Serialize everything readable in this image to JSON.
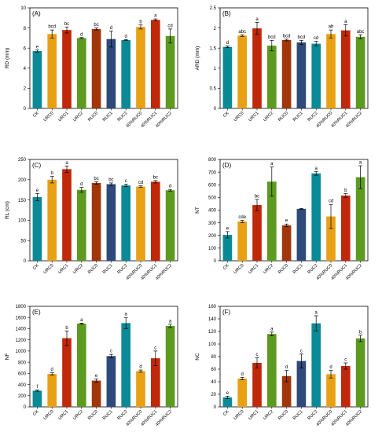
{
  "chart_data": [
    {
      "panel_label": "(A)",
      "type": "bar",
      "ylabel": "RD (mm)",
      "ylim": [
        0,
        10
      ],
      "yticks": [
        0,
        2,
        4,
        6,
        8,
        10
      ],
      "categories": [
        "CK",
        "URC0",
        "URC1",
        "URC2",
        "RUC0",
        "RUC1",
        "RUC2",
        "40%RUC0",
        "40%RUC1",
        "40%RUC2"
      ],
      "values": [
        5.7,
        7.4,
        7.8,
        7.0,
        7.9,
        6.9,
        6.8,
        8.1,
        8.8,
        7.2
      ],
      "errors": [
        0.1,
        0.4,
        0.3,
        0.05,
        0.1,
        0.8,
        0.05,
        0.2,
        0.1,
        0.7
      ],
      "letters": [
        "e",
        "bcd",
        "bc",
        "d",
        "bc",
        "d",
        "d",
        "b",
        "a",
        "cd"
      ],
      "colors": [
        "#0a8a96",
        "#e8a014",
        "#c0280a",
        "#5c9a20",
        "#a0360a",
        "#2e4a7a",
        "#0a8a96",
        "#e8a014",
        "#c0280a",
        "#5c9a20"
      ]
    },
    {
      "panel_label": "(B)",
      "type": "bar",
      "ylabel": "ARD (mm)",
      "ylim": [
        0,
        2.5
      ],
      "yticks": [
        0,
        0.5,
        1.0,
        1.5,
        2.0,
        2.5
      ],
      "categories": [
        "CK",
        "URC0",
        "URC1",
        "URC2",
        "RUC0",
        "RUC1",
        "RUC2",
        "40%RUC0",
        "40%RUC1",
        "40%RUC2"
      ],
      "values": [
        1.53,
        1.81,
        1.99,
        1.56,
        1.7,
        1.64,
        1.61,
        1.85,
        1.94,
        1.78
      ],
      "errors": [
        0.02,
        0.02,
        0.15,
        0.13,
        0.02,
        0.05,
        0.06,
        0.1,
        0.14,
        0.05
      ],
      "letters": [
        "d",
        "abc",
        "a",
        "bcd",
        "bcd",
        "bcd",
        "cd",
        "ab",
        "a",
        "abc"
      ],
      "colors": [
        "#0a8a96",
        "#e8a014",
        "#c0280a",
        "#5c9a20",
        "#a0360a",
        "#2e4a7a",
        "#0a8a96",
        "#e8a014",
        "#c0280a",
        "#5c9a20"
      ]
    },
    {
      "panel_label": "(C)",
      "type": "bar",
      "ylabel": "RL (cm)",
      "ylim": [
        0,
        250
      ],
      "yticks": [
        0,
        50,
        100,
        150,
        200,
        250
      ],
      "categories": [
        "CK",
        "URC0",
        "URC1",
        "URC2",
        "RUC0",
        "RUC1",
        "RUC2",
        "40%RUC0",
        "40%RUC1",
        "40%RUC2"
      ],
      "values": [
        157,
        200,
        226,
        175,
        192,
        189,
        186,
        183,
        195,
        174
      ],
      "errors": [
        9,
        8,
        8,
        6,
        3,
        3,
        3,
        2,
        3,
        2
      ],
      "letters": [
        "e",
        "b",
        "a",
        "d",
        "bc",
        "bc",
        "c",
        "cd",
        "bc",
        "d"
      ],
      "colors": [
        "#0a8a96",
        "#e8a014",
        "#c0280a",
        "#5c9a20",
        "#a0360a",
        "#2e4a7a",
        "#0a8a96",
        "#e8a014",
        "#c0280a",
        "#5c9a20"
      ]
    },
    {
      "panel_label": "(D)",
      "type": "bar",
      "ylabel": "NT",
      "ylim": [
        0,
        800
      ],
      "yticks": [
        0,
        100,
        200,
        300,
        400,
        500,
        600,
        700,
        800
      ],
      "categories": [
        "CK",
        "URC0",
        "URC1",
        "URC2",
        "RUC0",
        "RUC1",
        "RUC2",
        "40%RUC0",
        "40%RUC1",
        "40%RUC2"
      ],
      "values": [
        205,
        310,
        440,
        625,
        280,
        410,
        690,
        350,
        515,
        660
      ],
      "errors": [
        25,
        10,
        45,
        115,
        10,
        3,
        15,
        95,
        15,
        90
      ],
      "letters": [
        "e",
        "cde",
        "bc",
        "a",
        "e",
        "",
        "a",
        "cd",
        "b",
        "a"
      ],
      "colors": [
        "#0a8a96",
        "#e8a014",
        "#c0280a",
        "#5c9a20",
        "#a0360a",
        "#2e4a7a",
        "#0a8a96",
        "#e8a014",
        "#c0280a",
        "#5c9a20"
      ]
    },
    {
      "panel_label": "(E)",
      "type": "bar",
      "ylabel": "NF",
      "ylim": [
        0,
        1800
      ],
      "yticks": [
        0,
        200,
        400,
        600,
        800,
        1000,
        1200,
        1400,
        1600,
        1800
      ],
      "categories": [
        "CK",
        "URC0",
        "URC1",
        "URC2",
        "RUC0",
        "RUC1",
        "RUC2",
        "40%RUC0",
        "40%RUC1",
        "40%RUC2"
      ],
      "values": [
        290,
        590,
        1230,
        1490,
        470,
        910,
        1500,
        640,
        870,
        1450
      ],
      "errors": [
        10,
        20,
        130,
        10,
        30,
        30,
        100,
        20,
        130,
        30
      ],
      "letters": [
        "f",
        "d",
        "b",
        "a",
        "e",
        "c",
        "a",
        "d",
        "c",
        "a"
      ],
      "colors": [
        "#0a8a96",
        "#e8a014",
        "#c0280a",
        "#5c9a20",
        "#a0360a",
        "#2e4a7a",
        "#0a8a96",
        "#e8a014",
        "#c0280a",
        "#5c9a20"
      ]
    },
    {
      "panel_label": "(F)",
      "type": "bar",
      "ylabel": "NC",
      "ylim": [
        0,
        160
      ],
      "yticks": [
        0,
        20,
        40,
        60,
        80,
        100,
        120,
        140,
        160
      ],
      "categories": [
        "CK",
        "URC0",
        "URC1",
        "URC2",
        "RUC0",
        "RUC1",
        "RUC2",
        "40%RUC0",
        "40%RUC1",
        "40%RUC2"
      ],
      "values": [
        15,
        45,
        70,
        116,
        49,
        73,
        133,
        52,
        65,
        109
      ],
      "errors": [
        2,
        2,
        8,
        3,
        9,
        11,
        12,
        6,
        5,
        5
      ],
      "letters": [
        "e",
        "d",
        "c",
        "a",
        "d",
        "c",
        "a",
        "d",
        "c",
        "b"
      ],
      "colors": [
        "#0a8a96",
        "#e8a014",
        "#c0280a",
        "#5c9a20",
        "#a0360a",
        "#2e4a7a",
        "#0a8a96",
        "#e8a014",
        "#c0280a",
        "#5c9a20"
      ]
    }
  ]
}
